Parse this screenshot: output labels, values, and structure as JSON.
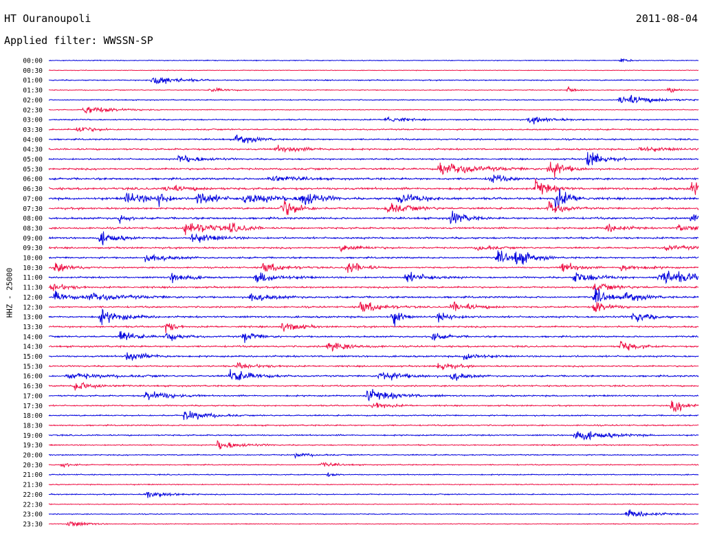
{
  "header": {
    "station": "HT Ouranoupoli",
    "date": "2011-08-04",
    "filter": "Applied filter: WWSSN-SP"
  },
  "axis": {
    "ylabel": "HHZ - 25000"
  },
  "colors": {
    "even_row": "#0000dd",
    "odd_row": "#ee0f44",
    "background": "#ffffff",
    "text": "#000000"
  },
  "chart_data": {
    "type": "line",
    "title": "HT Ouranoupoli",
    "subtitle": "Applied filter: WWSSN-SP",
    "ylabel": "HHZ - 25000",
    "grid": false,
    "legend": "none",
    "row_labels": [
      "00:00",
      "00:30",
      "01:00",
      "01:30",
      "02:00",
      "02:30",
      "03:00",
      "03:30",
      "04:00",
      "04:30",
      "05:00",
      "05:30",
      "06:00",
      "06:30",
      "07:00",
      "07:30",
      "08:00",
      "08:30",
      "09:00",
      "09:30",
      "10:00",
      "10:30",
      "11:00",
      "11:30",
      "12:00",
      "12:30",
      "13:00",
      "13:30",
      "14:00",
      "14:30",
      "15:00",
      "15:30",
      "16:00",
      "16:30",
      "17:00",
      "17:30",
      "18:00",
      "18:30",
      "19:00",
      "19:30",
      "20:00",
      "20:30",
      "21:00",
      "21:30",
      "22:00",
      "22:30",
      "23:00",
      "23:30"
    ],
    "row_colors": [
      "blue",
      "red"
    ],
    "row_noise": [
      1.0,
      0.8,
      1.3,
      1.0,
      1.2,
      1.0,
      1.5,
      1.7,
      1.8,
      2.0,
      1.8,
      2.2,
      2.4,
      2.6,
      2.6,
      2.3,
      2.4,
      2.2,
      2.2,
      2.0,
      2.0,
      1.8,
      2.0,
      2.0,
      2.2,
      2.0,
      2.2,
      2.0,
      2.0,
      2.0,
      2.0,
      1.8,
      2.0,
      1.8,
      1.8,
      1.6,
      1.6,
      1.6,
      1.6,
      1.4,
      1.4,
      1.3,
      1.3,
      1.2,
      1.3,
      1.1,
      1.1,
      1.0
    ],
    "events": [
      {
        "row": 0,
        "x": 0.88,
        "amp": 5,
        "dur": 0.01
      },
      {
        "row": 2,
        "x": 0.16,
        "amp": 12,
        "dur": 0.03
      },
      {
        "row": 3,
        "x": 0.25,
        "amp": 5,
        "dur": 0.02
      },
      {
        "row": 3,
        "x": 0.8,
        "amp": 7,
        "dur": 0.01
      },
      {
        "row": 3,
        "x": 0.955,
        "amp": 7,
        "dur": 0.01
      },
      {
        "row": 4,
        "x": 0.88,
        "amp": 12,
        "dur": 0.04
      },
      {
        "row": 5,
        "x": 0.055,
        "amp": 9,
        "dur": 0.04
      },
      {
        "row": 6,
        "x": 0.52,
        "amp": 9,
        "dur": 0.02
      },
      {
        "row": 6,
        "x": 0.74,
        "amp": 8,
        "dur": 0.03
      },
      {
        "row": 7,
        "x": 0.045,
        "amp": 8,
        "dur": 0.02
      },
      {
        "row": 8,
        "x": 0.29,
        "amp": 13,
        "dur": 0.02
      },
      {
        "row": 9,
        "x": 0.35,
        "amp": 6,
        "dur": 0.04
      },
      {
        "row": 9,
        "x": 0.91,
        "amp": 6,
        "dur": 0.03
      },
      {
        "row": 10,
        "x": 0.2,
        "amp": 9,
        "dur": 0.03
      },
      {
        "row": 10,
        "x": 0.83,
        "amp": 20,
        "dur": 0.02
      },
      {
        "row": 11,
        "x": 0.6,
        "amp": 14,
        "dur": 0.05
      },
      {
        "row": 11,
        "x": 0.77,
        "amp": 22,
        "dur": 0.02
      },
      {
        "row": 12,
        "x": 0.34,
        "amp": 9,
        "dur": 0.03
      },
      {
        "row": 12,
        "x": 0.68,
        "amp": 10,
        "dur": 0.02
      },
      {
        "row": 13,
        "x": 0.18,
        "amp": 7,
        "dur": 0.03
      },
      {
        "row": 13,
        "x": 0.75,
        "amp": 18,
        "dur": 0.02
      },
      {
        "row": 13,
        "x": 0.99,
        "amp": 14,
        "dur": 0.02
      },
      {
        "row": 14,
        "x": 0.12,
        "amp": 12,
        "dur": 0.03
      },
      {
        "row": 14,
        "x": 0.17,
        "amp": 16,
        "dur": 0.01
      },
      {
        "row": 14,
        "x": 0.23,
        "amp": 18,
        "dur": 0.02
      },
      {
        "row": 14,
        "x": 0.3,
        "amp": 10,
        "dur": 0.05
      },
      {
        "row": 14,
        "x": 0.39,
        "amp": 20,
        "dur": 0.02
      },
      {
        "row": 14,
        "x": 0.54,
        "amp": 12,
        "dur": 0.03
      },
      {
        "row": 14,
        "x": 0.78,
        "amp": 22,
        "dur": 0.02
      },
      {
        "row": 15,
        "x": 0.36,
        "amp": 22,
        "dur": 0.02
      },
      {
        "row": 15,
        "x": 0.52,
        "amp": 12,
        "dur": 0.03
      },
      {
        "row": 15,
        "x": 0.77,
        "amp": 14,
        "dur": 0.02
      },
      {
        "row": 16,
        "x": 0.11,
        "amp": 10,
        "dur": 0.01
      },
      {
        "row": 16,
        "x": 0.62,
        "amp": 14,
        "dur": 0.02
      },
      {
        "row": 16,
        "x": 0.99,
        "amp": 8,
        "dur": 0.02
      },
      {
        "row": 17,
        "x": 0.21,
        "amp": 14,
        "dur": 0.04
      },
      {
        "row": 17,
        "x": 0.28,
        "amp": 8,
        "dur": 0.02
      },
      {
        "row": 17,
        "x": 0.86,
        "amp": 10,
        "dur": 0.02
      },
      {
        "row": 17,
        "x": 0.97,
        "amp": 8,
        "dur": 0.03
      },
      {
        "row": 18,
        "x": 0.08,
        "amp": 14,
        "dur": 0.02
      },
      {
        "row": 18,
        "x": 0.22,
        "amp": 10,
        "dur": 0.03
      },
      {
        "row": 19,
        "x": 0.45,
        "amp": 6,
        "dur": 0.03
      },
      {
        "row": 19,
        "x": 0.66,
        "amp": 6,
        "dur": 0.02
      },
      {
        "row": 19,
        "x": 0.95,
        "amp": 5,
        "dur": 0.04
      },
      {
        "row": 20,
        "x": 0.15,
        "amp": 9,
        "dur": 0.03
      },
      {
        "row": 20,
        "x": 0.69,
        "amp": 12,
        "dur": 0.03
      },
      {
        "row": 20,
        "x": 0.72,
        "amp": 14,
        "dur": 0.02
      },
      {
        "row": 21,
        "x": 0.01,
        "amp": 12,
        "dur": 0.02
      },
      {
        "row": 21,
        "x": 0.33,
        "amp": 10,
        "dur": 0.03
      },
      {
        "row": 21,
        "x": 0.46,
        "amp": 14,
        "dur": 0.02
      },
      {
        "row": 21,
        "x": 0.79,
        "amp": 12,
        "dur": 0.02
      },
      {
        "row": 21,
        "x": 0.88,
        "amp": 8,
        "dur": 0.03
      },
      {
        "row": 22,
        "x": 0.19,
        "amp": 14,
        "dur": 0.02
      },
      {
        "row": 22,
        "x": 0.32,
        "amp": 12,
        "dur": 0.03
      },
      {
        "row": 22,
        "x": 0.55,
        "amp": 10,
        "dur": 0.03
      },
      {
        "row": 22,
        "x": 0.81,
        "amp": 12,
        "dur": 0.03
      },
      {
        "row": 22,
        "x": 0.94,
        "amp": 16,
        "dur": 0.05
      },
      {
        "row": 23,
        "x": 0.005,
        "amp": 10,
        "dur": 0.02
      },
      {
        "row": 23,
        "x": 0.84,
        "amp": 8,
        "dur": 0.03
      },
      {
        "row": 24,
        "x": 0.01,
        "amp": 12,
        "dur": 0.02
      },
      {
        "row": 24,
        "x": 0.06,
        "amp": 8,
        "dur": 0.05
      },
      {
        "row": 24,
        "x": 0.31,
        "amp": 9,
        "dur": 0.03
      },
      {
        "row": 24,
        "x": 0.84,
        "amp": 16,
        "dur": 0.02
      },
      {
        "row": 24,
        "x": 0.89,
        "amp": 12,
        "dur": 0.02
      },
      {
        "row": 25,
        "x": 0.48,
        "amp": 12,
        "dur": 0.03
      },
      {
        "row": 25,
        "x": 0.62,
        "amp": 10,
        "dur": 0.03
      },
      {
        "row": 25,
        "x": 0.84,
        "amp": 14,
        "dur": 0.02
      },
      {
        "row": 26,
        "x": 0.08,
        "amp": 14,
        "dur": 0.03
      },
      {
        "row": 26,
        "x": 0.53,
        "amp": 20,
        "dur": 0.01
      },
      {
        "row": 26,
        "x": 0.6,
        "amp": 10,
        "dur": 0.02
      },
      {
        "row": 26,
        "x": 0.9,
        "amp": 12,
        "dur": 0.02
      },
      {
        "row": 27,
        "x": 0.18,
        "amp": 16,
        "dur": 0.01
      },
      {
        "row": 27,
        "x": 0.36,
        "amp": 12,
        "dur": 0.02
      },
      {
        "row": 28,
        "x": 0.11,
        "amp": 12,
        "dur": 0.02
      },
      {
        "row": 28,
        "x": 0.18,
        "amp": 10,
        "dur": 0.02
      },
      {
        "row": 28,
        "x": 0.3,
        "amp": 10,
        "dur": 0.02
      },
      {
        "row": 28,
        "x": 0.59,
        "amp": 7,
        "dur": 0.02
      },
      {
        "row": 29,
        "x": 0.43,
        "amp": 10,
        "dur": 0.03
      },
      {
        "row": 29,
        "x": 0.88,
        "amp": 12,
        "dur": 0.02
      },
      {
        "row": 30,
        "x": 0.12,
        "amp": 9,
        "dur": 0.03
      },
      {
        "row": 30,
        "x": 0.64,
        "amp": 10,
        "dur": 0.02
      },
      {
        "row": 31,
        "x": 0.29,
        "amp": 6,
        "dur": 0.03
      },
      {
        "row": 31,
        "x": 0.6,
        "amp": 10,
        "dur": 0.02
      },
      {
        "row": 32,
        "x": 0.03,
        "amp": 6,
        "dur": 0.05
      },
      {
        "row": 32,
        "x": 0.28,
        "amp": 14,
        "dur": 0.03
      },
      {
        "row": 32,
        "x": 0.51,
        "amp": 12,
        "dur": 0.03
      },
      {
        "row": 32,
        "x": 0.62,
        "amp": 10,
        "dur": 0.02
      },
      {
        "row": 33,
        "x": 0.04,
        "amp": 10,
        "dur": 0.03
      },
      {
        "row": 34,
        "x": 0.15,
        "amp": 12,
        "dur": 0.03
      },
      {
        "row": 34,
        "x": 0.49,
        "amp": 12,
        "dur": 0.04
      },
      {
        "row": 35,
        "x": 0.5,
        "amp": 8,
        "dur": 0.02
      },
      {
        "row": 35,
        "x": 0.96,
        "amp": 14,
        "dur": 0.02
      },
      {
        "row": 36,
        "x": 0.21,
        "amp": 12,
        "dur": 0.03
      },
      {
        "row": 38,
        "x": 0.81,
        "amp": 12,
        "dur": 0.04
      },
      {
        "row": 39,
        "x": 0.26,
        "amp": 10,
        "dur": 0.03
      },
      {
        "row": 40,
        "x": 0.38,
        "amp": 5,
        "dur": 0.02
      },
      {
        "row": 41,
        "x": 0.02,
        "amp": 6,
        "dur": 0.01
      },
      {
        "row": 41,
        "x": 0.42,
        "amp": 5,
        "dur": 0.02
      },
      {
        "row": 42,
        "x": 0.43,
        "amp": 4,
        "dur": 0.01
      },
      {
        "row": 44,
        "x": 0.15,
        "amp": 7,
        "dur": 0.03
      },
      {
        "row": 46,
        "x": 0.89,
        "amp": 10,
        "dur": 0.03
      },
      {
        "row": 47,
        "x": 0.03,
        "amp": 9,
        "dur": 0.02
      }
    ]
  }
}
